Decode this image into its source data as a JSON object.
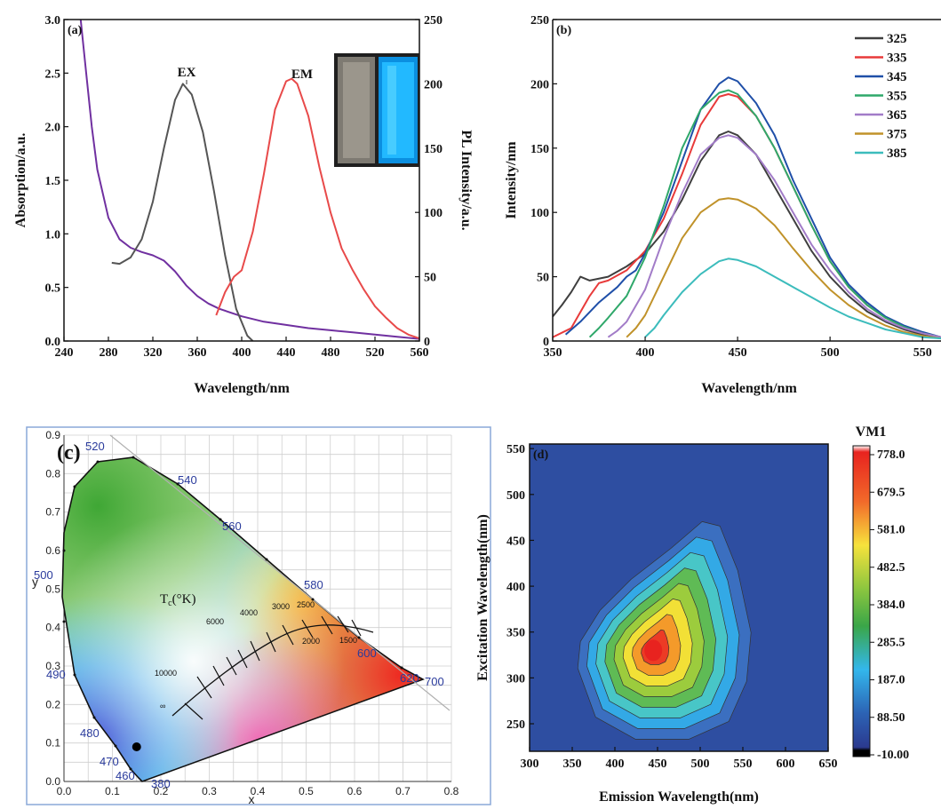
{
  "chart_data": [
    {
      "panel": "(a)",
      "type": "line",
      "xlabel": "Wavelength/nm",
      "ylabel": "Absorption/a.u.",
      "y2label": "PL Intensity/a.u.",
      "xlim": [
        240,
        560
      ],
      "ylim": [
        0,
        3.0
      ],
      "y2lim": [
        0,
        250
      ],
      "xticks": [
        "240",
        "280",
        "320",
        "360",
        "400",
        "440",
        "480",
        "520",
        "560"
      ],
      "yticks": [
        "0.0",
        "0.5",
        "1.0",
        "1.5",
        "2.0",
        "2.5",
        "3.0"
      ],
      "y2ticks": [
        "0",
        "50",
        "100",
        "150",
        "200",
        "250"
      ],
      "annotations": [
        "EX",
        "EM"
      ],
      "series": [
        {
          "color": "#7030a0",
          "axis": "left",
          "x": [
            255,
            260,
            265,
            270,
            280,
            290,
            300,
            310,
            320,
            330,
            340,
            350,
            360,
            370,
            380,
            400,
            420,
            440,
            460,
            480,
            500,
            520,
            540,
            560
          ],
          "y": [
            3.0,
            2.5,
            2.0,
            1.6,
            1.15,
            0.95,
            0.87,
            0.83,
            0.8,
            0.75,
            0.65,
            0.52,
            0.42,
            0.35,
            0.3,
            0.23,
            0.18,
            0.15,
            0.12,
            0.1,
            0.08,
            0.06,
            0.04,
            0.02
          ]
        },
        {
          "color": "#555555",
          "axis": "left",
          "x": [
            283,
            290,
            300,
            310,
            320,
            330,
            340,
            347,
            355,
            365,
            375,
            385,
            395,
            405,
            410
          ],
          "y": [
            0.73,
            0.72,
            0.78,
            0.95,
            1.3,
            1.8,
            2.25,
            2.4,
            2.3,
            1.95,
            1.4,
            0.8,
            0.3,
            0.05,
            0.0
          ]
        },
        {
          "color": "#e84a4a",
          "axis": "right",
          "x": [
            377,
            385,
            393,
            400,
            410,
            420,
            430,
            440,
            445,
            450,
            460,
            470,
            480,
            490,
            500,
            510,
            520,
            530,
            540,
            550,
            560
          ],
          "y": [
            20,
            38,
            50,
            55,
            85,
            130,
            180,
            202,
            204,
            200,
            175,
            135,
            100,
            72,
            55,
            40,
            27,
            18,
            10,
            5,
            2
          ]
        }
      ]
    },
    {
      "panel": "(b)",
      "type": "line",
      "xlabel": "Wavelength/nm",
      "ylabel": "Intensity/nm",
      "xlim": [
        350,
        560
      ],
      "ylim": [
        0,
        250
      ],
      "xticks": [
        "350",
        "400",
        "450",
        "500",
        "550"
      ],
      "yticks": [
        "0",
        "50",
        "100",
        "150",
        "200",
        "250"
      ],
      "series": [
        {
          "name": "325",
          "color": "#3f3f3f",
          "x": [
            350,
            355,
            360,
            365,
            370,
            380,
            390,
            400,
            410,
            420,
            430,
            440,
            445,
            450,
            460,
            470,
            480,
            490,
            500,
            510,
            520,
            530,
            540,
            550,
            560
          ],
          "y": [
            19,
            28,
            38,
            50,
            47,
            50,
            58,
            68,
            85,
            110,
            140,
            160,
            163,
            160,
            145,
            120,
            95,
            70,
            50,
            35,
            23,
            15,
            9,
            5,
            3
          ]
        },
        {
          "name": "335",
          "color": "#e83a3a",
          "x": [
            350,
            360,
            370,
            375,
            380,
            390,
            400,
            410,
            420,
            430,
            440,
            445,
            450,
            460,
            470,
            480,
            490,
            500,
            510,
            520,
            530,
            540,
            550,
            560
          ],
          "y": [
            3,
            10,
            35,
            45,
            47,
            55,
            70,
            95,
            130,
            168,
            190,
            192,
            190,
            175,
            150,
            120,
            90,
            62,
            42,
            28,
            18,
            11,
            6,
            3
          ]
        },
        {
          "name": "345",
          "color": "#1f4fa8",
          "x": [
            357,
            365,
            375,
            385,
            390,
            395,
            400,
            410,
            420,
            430,
            440,
            445,
            450,
            460,
            470,
            480,
            490,
            500,
            510,
            520,
            530,
            540,
            550,
            560
          ],
          "y": [
            5,
            15,
            30,
            42,
            50,
            55,
            68,
            100,
            140,
            180,
            200,
            205,
            202,
            185,
            160,
            125,
            95,
            65,
            44,
            30,
            19,
            12,
            7,
            3
          ]
        },
        {
          "name": "355",
          "color": "#2fa86a",
          "x": [
            370,
            375,
            380,
            390,
            400,
            410,
            420,
            430,
            440,
            445,
            450,
            460,
            470,
            480,
            490,
            500,
            510,
            520,
            530,
            540,
            550,
            560
          ],
          "y": [
            3,
            10,
            18,
            35,
            65,
            105,
            150,
            180,
            193,
            195,
            192,
            175,
            150,
            120,
            90,
            62,
            42,
            28,
            18,
            11,
            6,
            3
          ]
        },
        {
          "name": "365",
          "color": "#a27cc8",
          "x": [
            380,
            385,
            390,
            400,
            410,
            420,
            430,
            440,
            445,
            450,
            460,
            470,
            480,
            490,
            500,
            510,
            520,
            530,
            540,
            550,
            560
          ],
          "y": [
            3,
            8,
            15,
            40,
            80,
            115,
            145,
            158,
            160,
            158,
            145,
            125,
            100,
            75,
            55,
            38,
            25,
            16,
            10,
            6,
            3
          ]
        },
        {
          "name": "375",
          "color": "#c0922a",
          "x": [
            390,
            395,
            400,
            410,
            420,
            430,
            440,
            445,
            450,
            460,
            470,
            480,
            490,
            500,
            510,
            520,
            530,
            540,
            550,
            560
          ],
          "y": [
            3,
            10,
            20,
            50,
            80,
            100,
            110,
            111,
            110,
            103,
            90,
            72,
            55,
            40,
            28,
            19,
            12,
            7,
            4,
            2
          ]
        },
        {
          "name": "385",
          "color": "#3cbcbc",
          "x": [
            400,
            405,
            410,
            420,
            430,
            440,
            445,
            450,
            460,
            470,
            480,
            490,
            500,
            510,
            520,
            530,
            540,
            550,
            560
          ],
          "y": [
            3,
            10,
            20,
            38,
            52,
            62,
            64,
            63,
            58,
            50,
            42,
            34,
            26,
            19,
            14,
            9,
            6,
            3,
            2
          ]
        }
      ]
    },
    {
      "panel": "(c)",
      "type": "scatter",
      "xlabel": "x",
      "ylabel": "y",
      "xlim": [
        0.0,
        0.8
      ],
      "ylim": [
        0.0,
        0.9
      ],
      "xticks": [
        "0.0",
        "0.1",
        "0.2",
        "0.3",
        "0.4",
        "0.5",
        "0.6",
        "0.7",
        "0.8"
      ],
      "yticks": [
        "0.0",
        "0.1",
        "0.2",
        "0.3",
        "0.4",
        "0.5",
        "0.6",
        "0.7",
        "0.8",
        "0.9"
      ],
      "wavelength_labels": [
        "380",
        "460",
        "470",
        "480",
        "490",
        "500",
        "520",
        "540",
        "560",
        "580",
        "600",
        "620",
        "700"
      ],
      "planckian_label": "T",
      "planckian_sub": "c",
      "planckian_unit": "(°K)",
      "cct_labels": [
        "10000",
        "6000",
        "4000",
        "3000",
        "2500",
        "2000",
        "1500",
        "∞"
      ],
      "points": [
        {
          "x": 0.15,
          "y": 0.09
        }
      ]
    },
    {
      "panel": "(d)",
      "type": "heatmap",
      "title": "VM1",
      "xlabel": "Emission Wavelength(nm)",
      "ylabel": "Excitation Wavelength(nm)",
      "xlim": [
        300,
        650
      ],
      "ylim": [
        220,
        555
      ],
      "xticks": [
        "300",
        "350",
        "400",
        "450",
        "500",
        "550",
        "600",
        "650"
      ],
      "yticks": [
        "250",
        "300",
        "350",
        "400",
        "450",
        "500",
        "550"
      ],
      "colorbar_ticks": [
        "778.0",
        "679.5",
        "581.0",
        "482.5",
        "384.0",
        "285.5",
        "187.0",
        "88.50",
        "-10.00"
      ],
      "peak": {
        "x": 445,
        "y": 330,
        "value": 778
      }
    }
  ]
}
